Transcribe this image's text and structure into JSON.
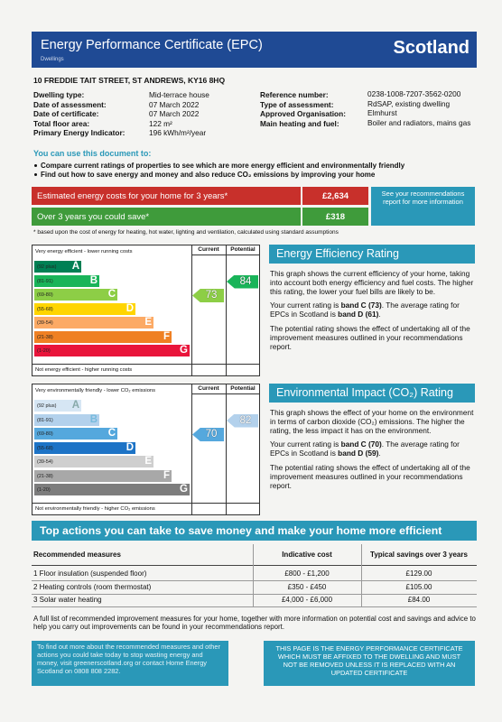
{
  "header": {
    "title": "Energy Performance Certificate (EPC)",
    "subtitle": "Dwellings",
    "country": "Scotland"
  },
  "address": "10 FREDDIE TAIT STREET, ST ANDREWS, KY16 8HQ",
  "details_left": [
    [
      "Dwelling type:",
      "Mid-terrace house"
    ],
    [
      "Date of assessment:",
      "07 March 2022"
    ],
    [
      "Date of certificate:",
      "07 March 2022"
    ],
    [
      "Total floor area:",
      "122 m²"
    ],
    [
      "Primary Energy Indicator:",
      "196 kWh/m²/year"
    ]
  ],
  "details_right": [
    [
      "Reference number:",
      "0238-1008-7207-3562-0200"
    ],
    [
      "Type of assessment:",
      "RdSAP, existing dwelling"
    ],
    [
      "Approved Organisation:",
      "Elmhurst"
    ],
    [
      "Main heating and fuel:",
      "Boiler and radiators, mains gas"
    ]
  ],
  "uses": {
    "heading": "You can use this document to:",
    "items": [
      "Compare current ratings of properties to see which are more energy efficient and environmentally friendly",
      "Find out how to save energy and money and also reduce CO₂ emissions by improving your home"
    ]
  },
  "costs": {
    "rows": [
      [
        "Estimated energy costs for your home for 3 years*",
        "£2,634"
      ],
      [
        "Over 3 years you could save*",
        "£318"
      ]
    ],
    "info": "See your recommendations report for more information",
    "note": "* based upon the cost of energy for heating, hot water, lighting and ventilation, calculated using standard assumptions"
  },
  "energy_efficiency": {
    "top_label": "Very energy efficient - lower running costs",
    "bottom_label": "Not energy efficient - higher running costs",
    "columns": [
      "Current",
      "Potential"
    ],
    "bands": [
      [
        "(92 plus)",
        "A"
      ],
      [
        "(81-91)",
        "B"
      ],
      [
        "(69-80)",
        "C"
      ],
      [
        "(55-68)",
        "D"
      ],
      [
        "(39-54)",
        "E"
      ],
      [
        "(21-38)",
        "F"
      ],
      [
        "(1-20)",
        "G"
      ]
    ],
    "current": "73",
    "potential": "84",
    "heading": "Energy Efficiency Rating",
    "paragraphs": [
      [
        "This graph shows the current efficiency of your home, taking into account both energy efficiency and fuel costs. The higher this rating, the lower your fuel bills are likely to be."
      ],
      [
        "Your current rating is ",
        "band C (73)",
        ". The average rating for EPCs in Scotland is ",
        "band D (61)",
        "."
      ],
      [
        "The potential rating shows the effect of undertaking all of the improvement measures outlined in your recommendations report."
      ]
    ]
  },
  "environmental_impact": {
    "top_label": "Very environmentally friendly - lower CO₂ emissions",
    "bottom_label": "Not environmentally friendly - higher CO₂ emissions",
    "columns": [
      "Current",
      "Potential"
    ],
    "bands": [
      [
        "(92 plus)",
        "A"
      ],
      [
        "(81-91)",
        "B"
      ],
      [
        "(69-80)",
        "C"
      ],
      [
        "(55-68)",
        "D"
      ],
      [
        "(39-54)",
        "E"
      ],
      [
        "(21-38)",
        "F"
      ],
      [
        "(1-20)",
        "G"
      ]
    ],
    "current": "70",
    "potential": "82",
    "heading": "Environmental Impact (CO₂) Rating",
    "paragraphs": [
      [
        "This graph shows the effect of your home on the environment in terms of carbon dioxide (CO₂) emissions. The higher the rating, the less impact it has on the environment."
      ],
      [
        "Your current rating is ",
        "band C (70)",
        ". The average rating for EPCs in Scotland is ",
        "band D (59)",
        "."
      ],
      [
        "The potential rating shows the effect of undertaking all of the improvement measures outlined in your recommendations report."
      ]
    ]
  },
  "actions": {
    "heading": "Top actions you can take to save money and make your home more efficient",
    "table": {
      "header": [
        "Recommended measures",
        "Indicative cost",
        "Typical savings over 3 years"
      ],
      "rows": [
        [
          "1 Floor insulation (suspended floor)",
          "£800 - £1,200",
          "£129.00"
        ],
        [
          "2 Heating controls (room thermostat)",
          "£350 - £450",
          "£105.00"
        ],
        [
          "3 Solar water heating",
          "£4,000 - £6,000",
          "£84.00"
        ]
      ]
    },
    "note": "A full list of recommended improvement measures for your home, together with more information on potential cost and savings and advice to help you carry out improvements can be found in your recommendations report."
  },
  "footer": {
    "left": "To find out more about the recommended measures and other actions you could take today to stop wasting energy and money, visit greenerscotland.org or contact Home Energy Scotland on 0808 808 2282.",
    "right": "THIS PAGE IS THE ENERGY PERFORMANCE CERTIFICATE WHICH MUST BE AFFIXED TO THE DWELLING AND MUST NOT BE REMOVED UNLESS IT IS REPLACED WITH AN UPDATED CERTIFICATE"
  }
}
